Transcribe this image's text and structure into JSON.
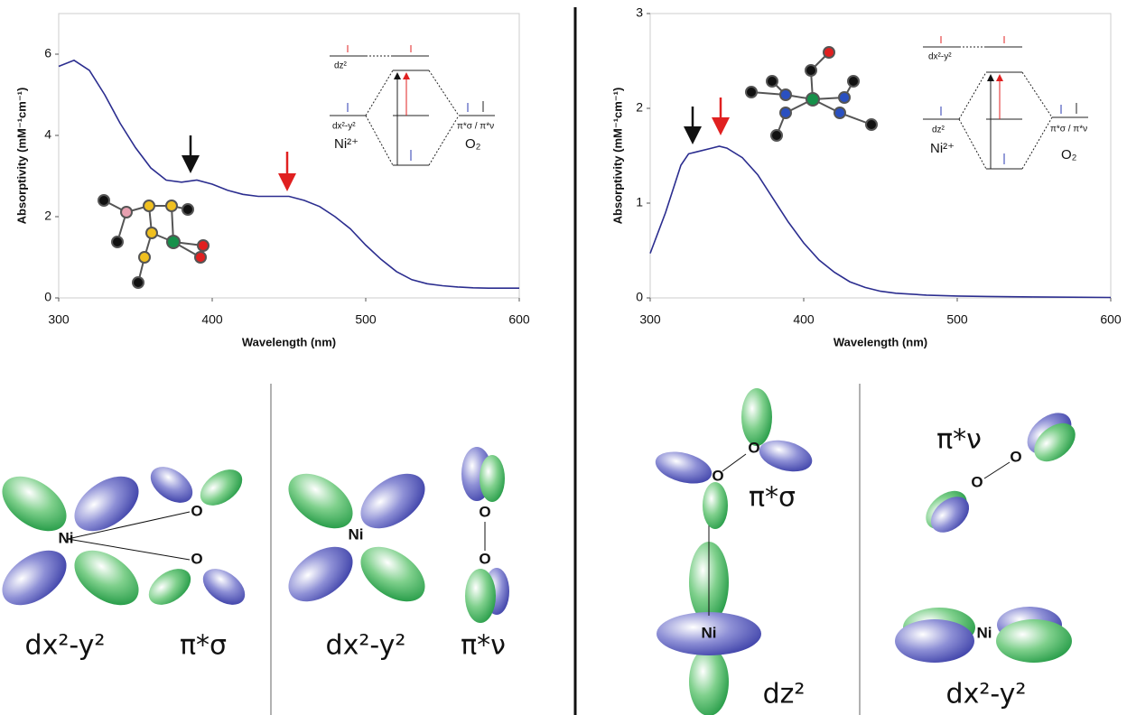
{
  "chart_data": [
    {
      "type": "line",
      "x_label": "Wavelength (nm)",
      "y_label": "Absorptivity (mM⁻¹cm⁻¹)",
      "x": [
        300,
        310,
        320,
        330,
        340,
        350,
        360,
        370,
        380,
        390,
        400,
        410,
        420,
        430,
        440,
        450,
        460,
        470,
        480,
        490,
        500,
        510,
        520,
        530,
        540,
        550,
        560,
        570,
        580,
        590,
        600
      ],
      "series": [
        {
          "color": "#2b2d8f",
          "values": [
            5.7,
            5.85,
            5.6,
            5.0,
            4.3,
            3.7,
            3.2,
            2.9,
            2.85,
            2.9,
            2.8,
            2.65,
            2.55,
            2.5,
            2.5,
            2.5,
            2.4,
            2.25,
            2.0,
            1.7,
            1.3,
            0.95,
            0.65,
            0.45,
            0.35,
            0.3,
            0.27,
            0.25,
            0.24,
            0.24,
            0.24
          ]
        }
      ],
      "xlim": [
        300,
        600
      ],
      "xticks": [
        300,
        400,
        500,
        600
      ],
      "ylim": [
        0,
        7
      ],
      "yticks": [
        0,
        2,
        4,
        6
      ]
    },
    {
      "type": "line",
      "x_label": "Wavelength (nm)",
      "y_label": "Absorptivity (mM⁻¹cm⁻¹)",
      "x": [
        300,
        310,
        320,
        325,
        330,
        340,
        345,
        350,
        360,
        370,
        380,
        390,
        400,
        410,
        420,
        430,
        440,
        450,
        460,
        480,
        500,
        520,
        550,
        600
      ],
      "series": [
        {
          "color": "#2b2d8f",
          "values": [
            0.47,
            0.9,
            1.4,
            1.52,
            1.54,
            1.58,
            1.6,
            1.58,
            1.48,
            1.3,
            1.05,
            0.8,
            0.58,
            0.4,
            0.27,
            0.17,
            0.11,
            0.07,
            0.05,
            0.03,
            0.02,
            0.015,
            0.01,
            0.005
          ]
        }
      ],
      "xlim": [
        300,
        600
      ],
      "xticks": [
        300,
        400,
        500,
        600
      ],
      "ylim": [
        0,
        3
      ],
      "yticks": [
        0,
        1,
        2,
        3
      ]
    }
  ],
  "insets": [
    {
      "labels": [
        "dz²",
        "dx²-y²",
        "Ni²⁺",
        "O₂",
        "π*σ / π*ν"
      ]
    },
    {
      "labels": [
        "dx²-y²",
        "dz²",
        "Ni²⁺",
        "O₂",
        "π*σ / π*ν"
      ]
    }
  ],
  "orbital_panels": [
    {
      "labels": [
        "Ni",
        "O",
        "O",
        "dx²-y²",
        "π*σ"
      ]
    },
    {
      "labels": [
        "Ni",
        "O",
        "O",
        "dx²-y²",
        "π*ν"
      ]
    },
    {
      "labels": [
        "O",
        "O",
        "Ni",
        "π*σ",
        "dz²"
      ]
    },
    {
      "labels": [
        "π*ν",
        "O",
        "O",
        "Ni",
        "dx²-y²"
      ]
    }
  ]
}
